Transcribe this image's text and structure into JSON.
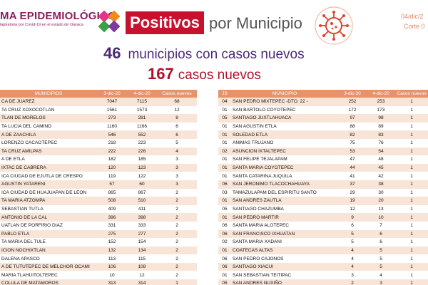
{
  "header": {
    "brand_title": "MA EPIDEMIOLÓGICO",
    "brand_subtitle": "lapiratoria por Covid-19 en el estado de Oaxaca",
    "positivos": "Positivos",
    "por_municipio": "por Municipio",
    "date_top": "04/dic/2",
    "corte": "Corte 0"
  },
  "summary": {
    "municipios_num": "46",
    "municipios_text": "municipios con casos nuevos",
    "casos_num": "167",
    "casos_text": "casos nuevos"
  },
  "colors": {
    "header_orange": "#e6936a",
    "row_stripe": "#f9e5d8",
    "brand_purple": "#8a1f5f",
    "red": "#c7112f"
  },
  "left_table": {
    "headers": [
      "MUNICIPIOS",
      "3-dic-20",
      "4-dic-20",
      "Casos nuevos"
    ],
    "rows": [
      [
        "CA DE JUAREZ",
        "7047",
        "7115",
        "68"
      ],
      [
        "TA CRUZ XOXOCOTLAN",
        "1561",
        "1573",
        "12"
      ],
      [
        "TLAN DE MORELOS",
        "273",
        "281",
        "8"
      ],
      [
        "TA LUCIA DEL CAMINO",
        "1160",
        "1166",
        "6"
      ],
      [
        "A DE ZAACHILA",
        "546",
        "552",
        "6"
      ],
      [
        "LORENZO CACAOTEPEC",
        "218",
        "223",
        "5"
      ],
      [
        "TA CRUZ AMILPAS",
        "222",
        "226",
        "4"
      ],
      [
        "A DE ETLA",
        "182",
        "185",
        "3"
      ],
      [
        "IXTAC DE CABRERA",
        "120",
        "123",
        "3"
      ],
      [
        "ICA CIUDAD DE EJUTLA DE CRESPO",
        "119",
        "122",
        "3"
      ],
      [
        "AGUSTIN YATARENI",
        "57",
        "60",
        "3"
      ],
      [
        "ICA CIUDAD DE HUAJUAPAN DE LEON",
        "865",
        "867",
        "2"
      ],
      [
        "TA MARIA ATZOMPA",
        "508",
        "510",
        "2"
      ],
      [
        "SEBASTIAN TUTLA",
        "409",
        "411",
        "2"
      ],
      [
        "ANTONIO DE LA CAL",
        "396",
        "398",
        "2"
      ],
      [
        "UATLAN DE PORFIRIO DIAZ",
        "331",
        "333",
        "2"
      ],
      [
        "PABLO ETLA",
        "275",
        "277",
        "2"
      ],
      [
        "TA MARIA DEL TULE",
        "152",
        "154",
        "2"
      ],
      [
        "ICION NOCHIXTLAN",
        "132",
        "134",
        "2"
      ],
      [
        "DALENA APASCO",
        "113",
        "115",
        "2"
      ],
      [
        "A DE TUTUTEPEC DE MELCHOR OCAMI",
        "106",
        "108",
        "2"
      ],
      [
        "MARIA TLAHUITOLTEPEC",
        "10",
        "12",
        "2"
      ],
      [
        "COLULA DE MATAMOROS",
        "313",
        "314",
        "1"
      ]
    ]
  },
  "right_table": {
    "headers": [
      "JS",
      "MUNICIPIO",
      "3-dic-20",
      "4-dic-20",
      "Casos nuevos"
    ],
    "rows": [
      [
        "04",
        "SAN PEDRO MIXTEPEC -DTO. 22 -",
        "252",
        "253",
        "1"
      ],
      [
        "01",
        "SAN BARTOLO COYOTEPEC",
        "172",
        "173",
        "1"
      ],
      [
        "05",
        "SANTIAGO JUXTLAHUACA",
        "97",
        "98",
        "1"
      ],
      [
        "01",
        "SAN AGUSTIN ETLA",
        "88",
        "89",
        "1"
      ],
      [
        "01",
        "SOLEDAD ETLA",
        "82",
        "83",
        "1"
      ],
      [
        "01",
        "ANIMAS TRUJANO",
        "75",
        "76",
        "1"
      ],
      [
        "02",
        "ASUNCION IXTALTEPEC",
        "53",
        "54",
        "1"
      ],
      [
        "01",
        "SAN FELIPE TEJALAPAM",
        "47",
        "48",
        "1"
      ],
      [
        "01",
        "SANTA MARIA COYOTEPEC",
        "44",
        "45",
        "1"
      ],
      [
        "01",
        "SANTA CATARINA JUQUILA",
        "41",
        "42",
        "1"
      ],
      [
        "06",
        "SAN JERONIMO TLACOCHAHUAYA",
        "37",
        "38",
        "1"
      ],
      [
        "03",
        "TAMAZULAPAM DEL ESPIRITU SANTO",
        "29",
        "30",
        "1"
      ],
      [
        "01",
        "SAN ANDRES ZAUTLA",
        "19",
        "20",
        "1"
      ],
      [
        "05",
        "SANTIAGO CHAZUMBA",
        "12",
        "13",
        "1"
      ],
      [
        "01",
        "SAN PEDRO MARTIR",
        "9",
        "10",
        "1"
      ],
      [
        "06",
        "SANTA MARIA ALOTEPEC",
        "6",
        "7",
        "1"
      ],
      [
        "06",
        "SAN FRANCISCO IXHUATAN",
        "5",
        "6",
        "1"
      ],
      [
        "02",
        "SANTA MARIA XADANI",
        "5",
        "6",
        "1"
      ],
      [
        "01",
        "COATECAS ALTAS",
        "4",
        "5",
        "1"
      ],
      [
        "06",
        "SAN PEDRO CAJONOS",
        "4",
        "5",
        "1"
      ],
      [
        "06",
        "SANTIAGO XIACUI",
        "4",
        "5",
        "1"
      ],
      [
        "01",
        "SAN SEBASTIAN TEITIPAC",
        "3",
        "4",
        "1"
      ],
      [
        "05",
        "SAN ANDRES NUXIÑO",
        "2",
        "3",
        "1"
      ]
    ]
  }
}
